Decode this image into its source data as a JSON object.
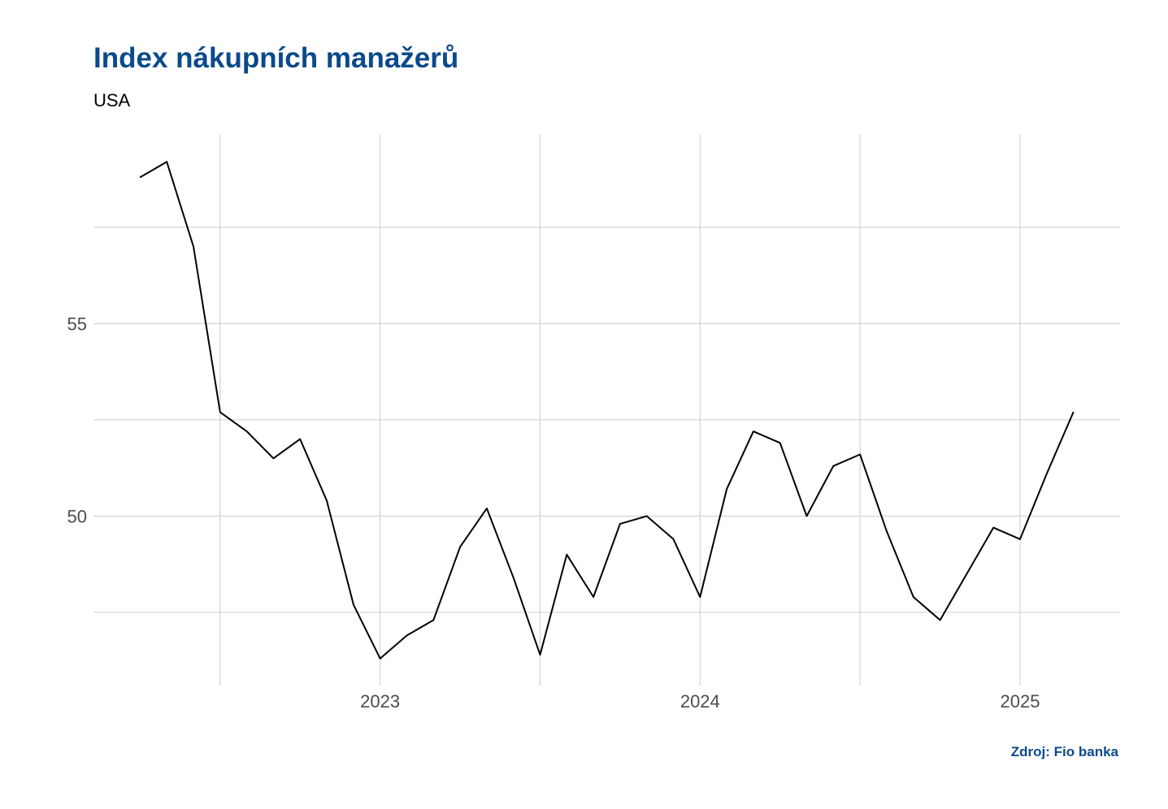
{
  "chart_data": {
    "type": "line",
    "title": "Index nákupních manažerů",
    "subtitle": "USA",
    "caption": "Zdroj: Fio banka",
    "xlabel": "",
    "ylabel": "",
    "x_tick_labels": [
      "2023",
      "2024",
      "2025"
    ],
    "y_tick_labels": [
      "50",
      "55"
    ],
    "grid": true,
    "series_color": "#000000",
    "grid_color": "#cccccc",
    "title_color": "#0b4a8b",
    "series": [
      {
        "x": [
          "2022-04",
          "2022-05",
          "2022-06",
          "2022-07",
          "2022-08",
          "2022-09",
          "2022-10",
          "2022-11",
          "2022-12",
          "2023-01",
          "2023-02",
          "2023-03",
          "2023-04",
          "2023-05",
          "2023-06",
          "2023-07",
          "2023-08",
          "2023-09",
          "2023-10",
          "2023-11",
          "2023-12",
          "2024-01",
          "2024-02",
          "2024-03",
          "2024-04",
          "2024-05",
          "2024-06",
          "2024-07",
          "2024-08",
          "2024-09",
          "2024-10",
          "2024-11",
          "2024-12",
          "2025-01",
          "2025-02",
          "2025-03"
        ],
        "values": [
          58.8,
          59.2,
          57.0,
          52.7,
          52.2,
          51.5,
          52.0,
          50.4,
          47.7,
          46.3,
          46.9,
          47.3,
          49.2,
          50.2,
          48.4,
          46.4,
          49.0,
          47.9,
          49.8,
          50.0,
          49.4,
          47.9,
          50.7,
          52.2,
          51.9,
          50.0,
          51.3,
          51.6,
          49.6,
          47.9,
          47.3,
          48.5,
          49.7,
          49.4,
          51.1,
          52.7
        ]
      }
    ],
    "ylim": [
      45.6,
      59.9
    ]
  }
}
